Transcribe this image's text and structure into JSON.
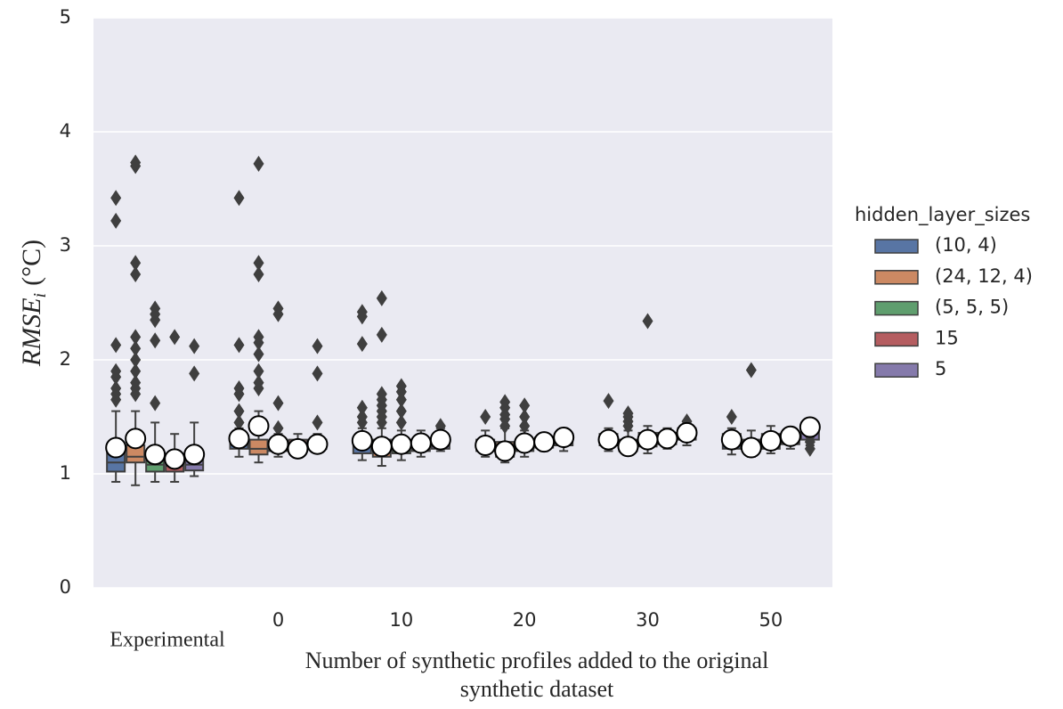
{
  "chart_data": {
    "type": "box",
    "ylabel": {
      "main": "RMSE",
      "sub": "i",
      "unit": "(°C)"
    },
    "xlabel": [
      "Number of synthetic profiles added to the original",
      "synthetic dataset"
    ],
    "categories": [
      "Experimental",
      "0",
      "10",
      "20",
      "30",
      "50"
    ],
    "ylim": [
      0,
      5
    ],
    "yticks": [
      0,
      1,
      2,
      3,
      4,
      5
    ],
    "grid": true,
    "legend": {
      "title": "hidden_layer_sizes",
      "position": "right"
    },
    "series": [
      {
        "name": "(10, 4)",
        "color": "#5875a4",
        "boxes": [
          {
            "whislo": 0.93,
            "q1": 1.02,
            "med": 1.1,
            "q3": 1.2,
            "whishi": 1.55,
            "mean": 1.23,
            "fliers": [
              1.65,
              1.7,
              1.75,
              1.85,
              1.9,
              2.13,
              3.22,
              3.42
            ]
          },
          {
            "whislo": 1.15,
            "q1": 1.22,
            "med": 1.27,
            "q3": 1.33,
            "whishi": 1.4,
            "mean": 1.31,
            "fliers": [
              1.45,
              1.55,
              1.7,
              1.75,
              2.13,
              3.42
            ]
          },
          {
            "whislo": 1.12,
            "q1": 1.18,
            "med": 1.24,
            "q3": 1.3,
            "whishi": 1.4,
            "mean": 1.29,
            "fliers": [
              1.45,
              1.5,
              1.58,
              2.14,
              2.38,
              2.42
            ]
          },
          {
            "whislo": 1.15,
            "q1": 1.2,
            "med": 1.25,
            "q3": 1.3,
            "whishi": 1.38,
            "mean": 1.25,
            "fliers": [
              1.5
            ]
          },
          {
            "whislo": 1.2,
            "q1": 1.25,
            "med": 1.3,
            "q3": 1.35,
            "whishi": 1.4,
            "mean": 1.3,
            "fliers": [
              1.64
            ]
          },
          {
            "whislo": 1.17,
            "q1": 1.22,
            "med": 1.29,
            "q3": 1.35,
            "whishi": 1.4,
            "mean": 1.3,
            "fliers": [
              1.5
            ]
          }
        ]
      },
      {
        "name": "(24, 12, 4)",
        "color": "#cc8963",
        "boxes": [
          {
            "whislo": 0.9,
            "q1": 1.1,
            "med": 1.15,
            "q3": 1.25,
            "whishi": 1.55,
            "mean": 1.31,
            "fliers": [
              1.7,
              1.75,
              1.8,
              1.9,
              2.0,
              2.1,
              2.2,
              2.75,
              2.85,
              3.7,
              3.73
            ]
          },
          {
            "whislo": 1.1,
            "q1": 1.17,
            "med": 1.22,
            "q3": 1.3,
            "whishi": 1.55,
            "mean": 1.42,
            "fliers": [
              1.75,
              1.8,
              1.9,
              2.05,
              2.15,
              2.2,
              2.75,
              2.85,
              3.72
            ]
          },
          {
            "whislo": 1.07,
            "q1": 1.15,
            "med": 1.22,
            "q3": 1.3,
            "whishi": 1.4,
            "mean": 1.24,
            "fliers": [
              1.45,
              1.5,
              1.55,
              1.6,
              1.65,
              1.7,
              2.22,
              2.54
            ]
          },
          {
            "whislo": 1.1,
            "q1": 1.15,
            "med": 1.2,
            "q3": 1.28,
            "whishi": 1.4,
            "mean": 1.2,
            "fliers": [
              1.42,
              1.48,
              1.52,
              1.58,
              1.63
            ]
          },
          {
            "whislo": 1.18,
            "q1": 1.2,
            "med": 1.24,
            "q3": 1.3,
            "whishi": 1.38,
            "mean": 1.24,
            "fliers": [
              1.42,
              1.46,
              1.5,
              1.53
            ]
          },
          {
            "whislo": 1.15,
            "q1": 1.2,
            "med": 1.24,
            "q3": 1.3,
            "whishi": 1.38,
            "mean": 1.23,
            "fliers": [
              1.91
            ]
          }
        ]
      },
      {
        "name": "(5, 5, 5)",
        "color": "#5f9e6e",
        "boxes": [
          {
            "whislo": 0.93,
            "q1": 1.02,
            "med": 1.08,
            "q3": 1.15,
            "whishi": 1.45,
            "mean": 1.17,
            "fliers": [
              1.62,
              2.17,
              2.35,
              2.4,
              2.45
            ]
          },
          {
            "whislo": 1.15,
            "q1": 1.2,
            "med": 1.24,
            "q3": 1.28,
            "whishi": 1.35,
            "mean": 1.26,
            "fliers": [
              1.4,
              1.62,
              2.4,
              2.45
            ]
          },
          {
            "whislo": 1.12,
            "q1": 1.18,
            "med": 1.22,
            "q3": 1.3,
            "whishi": 1.38,
            "mean": 1.26,
            "fliers": [
              1.45,
              1.55,
              1.65,
              1.72,
              1.77
            ]
          },
          {
            "whislo": 1.15,
            "q1": 1.2,
            "med": 1.25,
            "q3": 1.3,
            "whishi": 1.38,
            "mean": 1.27,
            "fliers": [
              1.42,
              1.5,
              1.6
            ]
          },
          {
            "whislo": 1.18,
            "q1": 1.24,
            "med": 1.3,
            "q3": 1.36,
            "whishi": 1.42,
            "mean": 1.3,
            "fliers": [
              2.34
            ]
          },
          {
            "whislo": 1.18,
            "q1": 1.22,
            "med": 1.28,
            "q3": 1.35,
            "whishi": 1.42,
            "mean": 1.29,
            "fliers": []
          }
        ]
      },
      {
        "name": "15",
        "color": "#b55d60",
        "boxes": [
          {
            "whislo": 0.93,
            "q1": 1.02,
            "med": 1.07,
            "q3": 1.12,
            "whishi": 1.35,
            "mean": 1.13,
            "fliers": [
              2.2
            ]
          },
          {
            "whislo": 1.18,
            "q1": 1.2,
            "med": 1.24,
            "q3": 1.3,
            "whishi": 1.35,
            "mean": 1.22,
            "fliers": []
          },
          {
            "whislo": 1.15,
            "q1": 1.2,
            "med": 1.24,
            "q3": 1.3,
            "whishi": 1.38,
            "mean": 1.27,
            "fliers": []
          },
          {
            "whislo": 1.2,
            "q1": 1.23,
            "med": 1.28,
            "q3": 1.32,
            "whishi": 1.35,
            "mean": 1.28,
            "fliers": []
          },
          {
            "whislo": 1.22,
            "q1": 1.26,
            "med": 1.31,
            "q3": 1.36,
            "whishi": 1.4,
            "mean": 1.31,
            "fliers": []
          },
          {
            "whislo": 1.22,
            "q1": 1.26,
            "med": 1.31,
            "q3": 1.36,
            "whishi": 1.4,
            "mean": 1.33,
            "fliers": []
          }
        ]
      },
      {
        "name": "5",
        "color": "#857aab",
        "boxes": [
          {
            "whislo": 0.98,
            "q1": 1.03,
            "med": 1.08,
            "q3": 1.2,
            "whishi": 1.45,
            "mean": 1.17,
            "fliers": [
              1.88,
              2.12
            ]
          },
          {
            "whislo": 1.2,
            "q1": 1.22,
            "med": 1.25,
            "q3": 1.3,
            "whishi": 1.35,
            "mean": 1.26,
            "fliers": [
              1.45,
              1.88,
              2.12
            ]
          },
          {
            "whislo": 1.2,
            "q1": 1.22,
            "med": 1.27,
            "q3": 1.32,
            "whishi": 1.4,
            "mean": 1.3,
            "fliers": [
              1.42
            ]
          },
          {
            "whislo": 1.2,
            "q1": 1.25,
            "med": 1.3,
            "q3": 1.35,
            "whishi": 1.4,
            "mean": 1.32,
            "fliers": []
          },
          {
            "whislo": 1.25,
            "q1": 1.3,
            "med": 1.35,
            "q3": 1.4,
            "whishi": 1.45,
            "mean": 1.36,
            "fliers": [
              1.46
            ]
          },
          {
            "whislo": 1.25,
            "q1": 1.3,
            "med": 1.36,
            "q3": 1.42,
            "whishi": 1.48,
            "mean": 1.41,
            "fliers": [
              1.22,
              1.28,
              1.33
            ]
          }
        ]
      }
    ]
  }
}
